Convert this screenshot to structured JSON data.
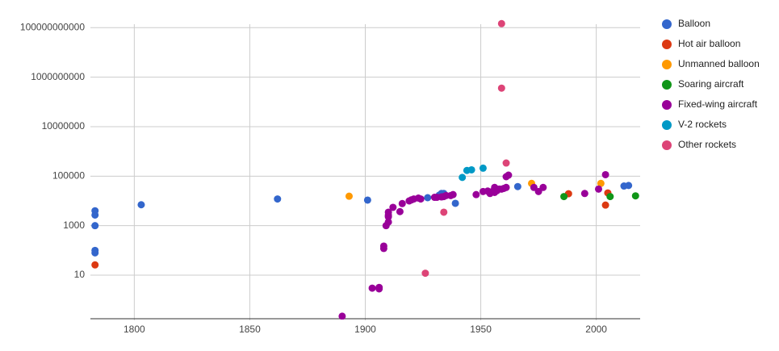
{
  "chart_data": {
    "type": "scatter",
    "ylog": true,
    "grid": true,
    "legend_position": "right",
    "xlim": [
      1781,
      2019
    ],
    "xticks": [
      1800,
      1850,
      1900,
      1950,
      2000
    ],
    "ylim": [
      0.15,
      200000000000
    ],
    "yticks": [
      10,
      1000,
      100000,
      10000000,
      1000000000,
      100000000000
    ],
    "series": [
      {
        "name": "Balloon",
        "color": "#3366cc",
        "x": [
          1783,
          1783,
          1783,
          1783,
          1783,
          1803,
          1862,
          1901,
          1927,
          1932,
          1933,
          1934,
          1939,
          1966,
          2012,
          2014
        ],
        "values": [
          1000,
          2700,
          4000,
          100,
          80,
          7000,
          12000,
          10800,
          13500,
          17000,
          20000,
          20000,
          8000,
          38000,
          40000,
          42000
        ]
      },
      {
        "name": "Hot air balloon",
        "color": "#dc3912",
        "x": [
          1783,
          1988,
          2004,
          2005
        ],
        "values": [
          26,
          19500,
          6800,
          21000
        ]
      },
      {
        "name": "Unmanned balloon",
        "color": "#ff9900",
        "x": [
          1893,
          1972,
          2002
        ],
        "values": [
          15500,
          51000,
          51000
        ]
      },
      {
        "name": "Soaring aircraft",
        "color": "#109618",
        "x": [
          1986,
          2006,
          2017
        ],
        "values": [
          15000,
          15000,
          16000
        ]
      },
      {
        "name": "Fixed-wing aircraft",
        "color": "#990099",
        "x": [
          1890,
          1903,
          1906,
          1906,
          1908,
          1908,
          1909,
          1910,
          1910,
          1910,
          1910,
          1912,
          1915,
          1916,
          1919,
          1920,
          1921,
          1923,
          1924,
          1930,
          1931,
          1933,
          1934,
          1935,
          1937,
          1938,
          1948,
          1951,
          1953,
          1954,
          1955,
          1956,
          1956,
          1957,
          1958,
          1959,
          1960,
          1961,
          1961,
          1962,
          1973,
          1975,
          1977,
          1995,
          2001,
          2004
        ],
        "values": [
          0.22,
          3,
          3.2,
          2.8,
          120,
          150,
          1000,
          1400,
          3500,
          2700,
          2300,
          5500,
          3700,
          7800,
          10000,
          11000,
          12000,
          13000,
          12000,
          14000,
          14000,
          14500,
          15000,
          16500,
          16500,
          18000,
          18000,
          24000,
          25000,
          20000,
          24000,
          35000,
          22000,
          26000,
          30000,
          30000,
          32000,
          95000,
          35000,
          110000,
          35000,
          24000,
          35000,
          20000,
          30000,
          115000
        ]
      },
      {
        "name": "V-2 rockets",
        "color": "#0099c6",
        "x": [
          1942,
          1944,
          1946,
          1951
        ],
        "values": [
          89000,
          170000,
          180000,
          210000
        ]
      },
      {
        "name": "Other rockets",
        "color": "#dd4477",
        "x": [
          1959,
          1959,
          1961,
          1934,
          1926
        ],
        "values": [
          145000000000,
          360000000,
          340000,
          3500,
          12
        ]
      }
    ]
  }
}
